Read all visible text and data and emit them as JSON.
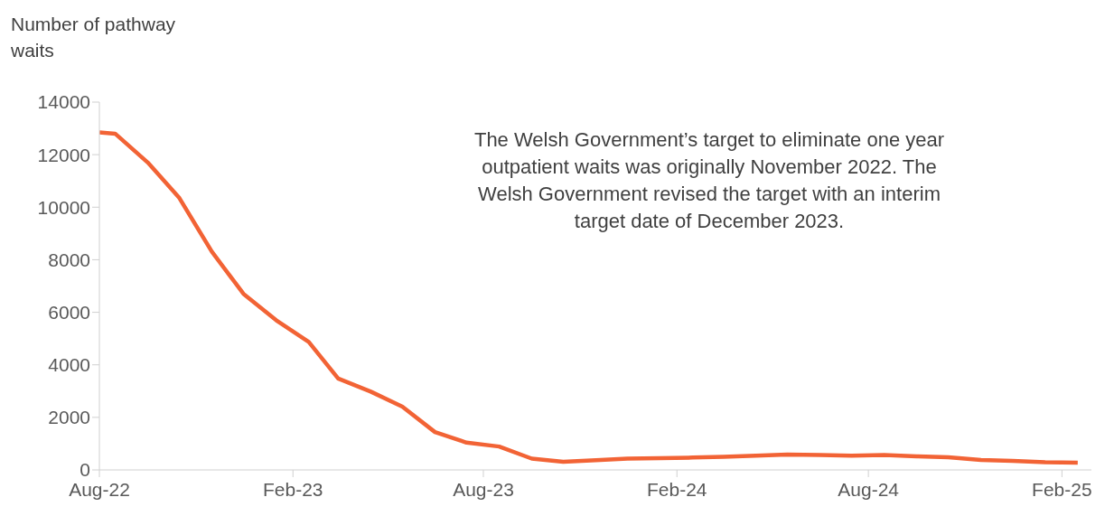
{
  "chart_data": {
    "type": "line",
    "ylabel": "Number of pathway waits",
    "annotations": [
      "The Welsh Government’s target to eliminate one year outpatient waits was originally November 2022. The Welsh Government revised the target with an interim target date of December 2023."
    ],
    "x": [
      "2022-08-01",
      "2022-08-16",
      "2022-09-16",
      "2022-10-16",
      "2022-11-16",
      "2022-12-16",
      "2023-01-16",
      "2023-02-16",
      "2023-03-16",
      "2023-04-16",
      "2023-05-16",
      "2023-06-16",
      "2023-07-16",
      "2023-08-16",
      "2023-09-16",
      "2023-10-16",
      "2023-11-16",
      "2023-12-16",
      "2024-01-16",
      "2024-02-16",
      "2024-03-16",
      "2024-04-16",
      "2024-05-16",
      "2024-06-16",
      "2024-07-16",
      "2024-08-16",
      "2024-09-16",
      "2024-10-16",
      "2024-11-16",
      "2024-12-16",
      "2025-01-16",
      "2025-02-16"
    ],
    "series": [
      {
        "color": "#f26335",
        "values": [
          12850,
          12800,
          11700,
          10350,
          8300,
          6700,
          5700,
          4870,
          3480,
          2980,
          2410,
          1440,
          1040,
          890,
          430,
          310,
          370,
          430,
          450,
          470,
          500,
          540,
          585,
          570,
          545,
          565,
          520,
          480,
          380,
          345,
          290,
          275
        ]
      }
    ],
    "xlim": [
      "2022-08-01",
      "2025-03-01"
    ],
    "xticks": [
      {
        "value": "2022-08-01",
        "label": "Aug-22"
      },
      {
        "value": "2023-02-01",
        "label": "Feb-23"
      },
      {
        "value": "2023-08-01",
        "label": "Aug-23"
      },
      {
        "value": "2024-02-01",
        "label": "Feb-24"
      },
      {
        "value": "2024-08-01",
        "label": "Aug-24"
      },
      {
        "value": "2025-02-01",
        "label": "Feb-25"
      }
    ],
    "ylim": [
      0,
      14000
    ],
    "yticks": [
      0,
      2000,
      4000,
      6000,
      8000,
      10000,
      12000,
      14000
    ],
    "grid": false,
    "legend": false,
    "marker": "none",
    "line_style": "solid"
  }
}
